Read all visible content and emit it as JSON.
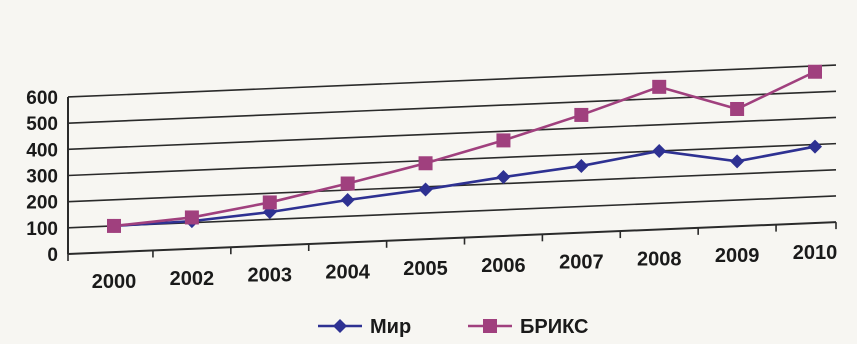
{
  "chart_data": {
    "type": "line",
    "title": "",
    "xlabel": "",
    "ylabel": "",
    "categories": [
      "2000",
      "2002",
      "2003",
      "2004",
      "2005",
      "2006",
      "2007",
      "2008",
      "2009",
      "2010"
    ],
    "ylim": [
      0,
      600
    ],
    "yticks": [
      "0",
      "100",
      "200",
      "300",
      "400",
      "500",
      "600"
    ],
    "grid": true,
    "legend_position": "bottom",
    "series": [
      {
        "name": "Мир",
        "color": "#2e3192",
        "marker": "diamond",
        "values": [
          100,
          106,
          128,
          162,
          190,
          225,
          255,
          300,
          248,
          292
        ]
      },
      {
        "name": "БРИКС",
        "color": "#a0407e",
        "marker": "square",
        "values": [
          100,
          120,
          165,
          225,
          290,
          365,
          450,
          545,
          448,
          578
        ]
      }
    ]
  }
}
